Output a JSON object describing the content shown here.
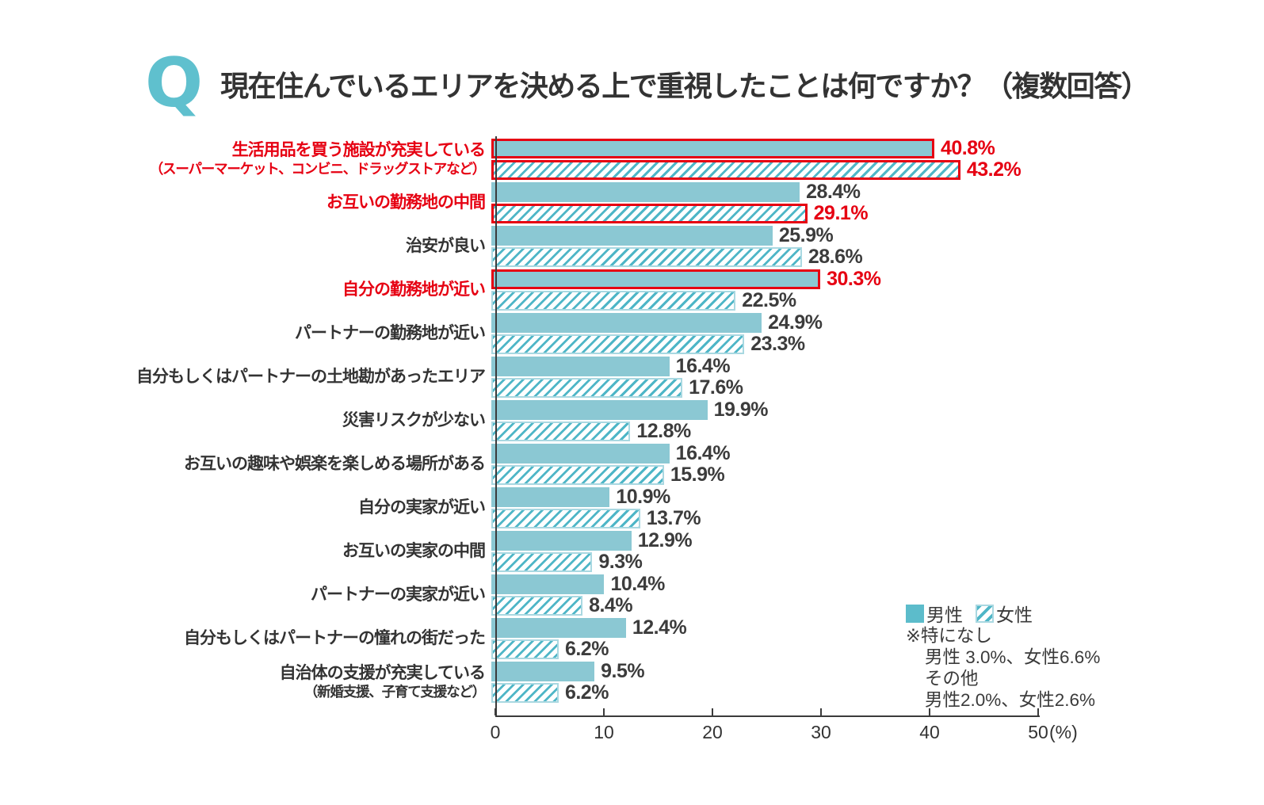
{
  "header": {
    "q_mark": "Q",
    "title": "現在住んでいるエリアを決める上で重視したことは何ですか？（複数回答）"
  },
  "colors": {
    "bar_fill_teal": "#8BC8D3",
    "stripe_teal": "#4FB6C7",
    "hatch_border_teal": "#A9D8E1",
    "legend_teal": "#5CBCCB",
    "q_logo_teal": "#5FC0CE",
    "highlight_red": "#E60012",
    "text_dark": "#333333"
  },
  "legend": {
    "male_label": "男性",
    "female_label": "女性"
  },
  "notes": {
    "line1": "※特になし",
    "line2": "男性 3.0%、女性6.6%",
    "line3": "その他",
    "line4": "男性2.0%、女性2.6%"
  },
  "axis": {
    "ticks": [
      "0",
      "10",
      "20",
      "30",
      "40",
      "50"
    ],
    "unit": "(%)",
    "max": 50
  },
  "chart_data": {
    "type": "bar",
    "orientation": "horizontal",
    "title": "現在住んでいるエリアを決める上で重視したことは何ですか？（複数回答）",
    "series_names": [
      "男性",
      "女性"
    ],
    "xlabel": "(%)",
    "xlim": [
      0,
      50
    ],
    "grid": false,
    "legend_position": "right-bottom",
    "categories": [
      {
        "label": "生活用品を買う施設が充実している",
        "sub": "（スーパーマーケット、コンビニ、ドラッグストアなど）",
        "male": 40.8,
        "female": 43.2,
        "label_highlight": true,
        "male_highlight": true,
        "female_highlight": true
      },
      {
        "label": "お互いの勤務地の中間",
        "sub": "",
        "male": 28.4,
        "female": 29.1,
        "label_highlight": true,
        "male_highlight": false,
        "female_highlight": true
      },
      {
        "label": "治安が良い",
        "sub": "",
        "male": 25.9,
        "female": 28.6,
        "label_highlight": false,
        "male_highlight": false,
        "female_highlight": false
      },
      {
        "label": "自分の勤務地が近い",
        "sub": "",
        "male": 30.3,
        "female": 22.5,
        "label_highlight": true,
        "male_highlight": true,
        "female_highlight": false
      },
      {
        "label": "パートナーの勤務地が近い",
        "sub": "",
        "male": 24.9,
        "female": 23.3,
        "label_highlight": false,
        "male_highlight": false,
        "female_highlight": false
      },
      {
        "label": "自分もしくはパートナーの土地勘があったエリア",
        "sub": "",
        "male": 16.4,
        "female": 17.6,
        "label_highlight": false,
        "male_highlight": false,
        "female_highlight": false
      },
      {
        "label": "災害リスクが少ない",
        "sub": "",
        "male": 19.9,
        "female": 12.8,
        "label_highlight": false,
        "male_highlight": false,
        "female_highlight": false
      },
      {
        "label": "お互いの趣味や娯楽を楽しめる場所がある",
        "sub": "",
        "male": 16.4,
        "female": 15.9,
        "label_highlight": false,
        "male_highlight": false,
        "female_highlight": false
      },
      {
        "label": "自分の実家が近い",
        "sub": "",
        "male": 10.9,
        "female": 13.7,
        "label_highlight": false,
        "male_highlight": false,
        "female_highlight": false
      },
      {
        "label": "お互いの実家の中間",
        "sub": "",
        "male": 12.9,
        "female": 9.3,
        "label_highlight": false,
        "male_highlight": false,
        "female_highlight": false
      },
      {
        "label": "パートナーの実家が近い",
        "sub": "",
        "male": 10.4,
        "female": 8.4,
        "label_highlight": false,
        "male_highlight": false,
        "female_highlight": false
      },
      {
        "label": "自分もしくはパートナーの憧れの街だった",
        "sub": "",
        "male": 12.4,
        "female": 6.2,
        "label_highlight": false,
        "male_highlight": false,
        "female_highlight": false
      },
      {
        "label": "自治体の支援が充実している",
        "sub": "（新婚支援、子育て支援など）",
        "male": 9.5,
        "female": 6.2,
        "label_highlight": false,
        "male_highlight": false,
        "female_highlight": false
      }
    ]
  }
}
